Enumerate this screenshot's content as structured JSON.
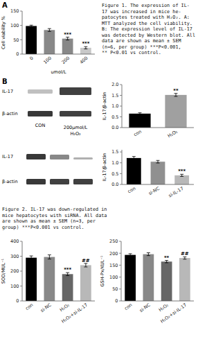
{
  "chart_data": [
    {
      "type": "bar",
      "title": "A",
      "categories": [
        "0",
        "100",
        "200",
        "400"
      ],
      "values": [
        98,
        84,
        54,
        22
      ],
      "errors": [
        3,
        5,
        5,
        4
      ],
      "colors": [
        "#000000",
        "#888888",
        "#888888",
        "#c8c8c8"
      ],
      "ylabel": "Cell viability %",
      "xlabel": "umol/L",
      "ylim": [
        0,
        150
      ],
      "yticks": [
        0,
        50,
        100,
        150
      ],
      "annotations": [
        null,
        null,
        "***",
        "***"
      ]
    },
    {
      "type": "bar",
      "categories": [
        "con",
        "H₂O₂"
      ],
      "values": [
        0.65,
        1.52
      ],
      "errors": [
        0.04,
        0.07
      ],
      "colors": [
        "#000000",
        "#a0a0a0"
      ],
      "ylabel": "IL-17/β-actin",
      "ylim": [
        0.0,
        2.0
      ],
      "yticks": [
        {
          "value": 0,
          "label": "0.0"
        },
        0.5,
        {
          "value": 1,
          "label": "1.0"
        },
        1.5,
        {
          "value": 2,
          "label": "2.0"
        }
      ],
      "annotations": [
        null,
        "**"
      ]
    },
    {
      "type": "bar",
      "categories": [
        "con",
        "si-NC",
        "si-IL-17"
      ],
      "values": [
        1.22,
        1.05,
        0.42
      ],
      "errors": [
        0.07,
        0.06,
        0.05
      ],
      "colors": [
        "#000000",
        "#909090",
        "#b8b8b8"
      ],
      "ylabel": "IL-17/β-actin",
      "ylim": [
        0.0,
        1.6
      ],
      "yticks": [
        {
          "value": 0,
          "label": "0.0"
        },
        0.5,
        {
          "value": 1,
          "label": "1.0"
        },
        1.5
      ],
      "annotations": [
        null,
        null,
        "***"
      ]
    },
    {
      "type": "bar",
      "categories": [
        "con",
        "si-NC",
        "H₂O₂",
        "H₂O₂+si-IL-17"
      ],
      "values": [
        290,
        295,
        180,
        240
      ],
      "errors": [
        12,
        14,
        10,
        12
      ],
      "colors": [
        "#000000",
        "#888888",
        "#666666",
        "#b8b8b8"
      ],
      "ylabel": "SOD/MUL⁻¹",
      "ylim": [
        0,
        400
      ],
      "yticks": [
        0,
        100,
        200,
        300,
        400
      ],
      "annotations": [
        null,
        null,
        "***",
        "##"
      ]
    },
    {
      "type": "bar",
      "categories": [
        "con",
        "si-NC",
        "H₂O₂",
        "H₂O₂+si-IL-17"
      ],
      "values": [
        193,
        196,
        165,
        180
      ],
      "errors": [
        5,
        6,
        5,
        5
      ],
      "colors": [
        "#000000",
        "#888888",
        "#666666",
        "#b8b8b8"
      ],
      "ylabel": "GSH-Px/KUL⁻¹",
      "ylim": [
        0,
        250
      ],
      "yticks": [
        0,
        50,
        100,
        150,
        200,
        250
      ],
      "annotations": [
        null,
        null,
        "**",
        "##"
      ]
    }
  ],
  "western_blots": [
    {
      "panel": "B",
      "row_labels": [
        "IL-17",
        "β-actin"
      ],
      "lane_labels": [
        [
          "CON"
        ],
        [
          "200μmol/L",
          "H₂O₂"
        ]
      ]
    },
    {
      "row_labels": [
        "IL-17",
        "β-actin"
      ]
    }
  ],
  "captions": [
    "Figure 1. The expression of IL-\n17 was increased in mice he-\npatocytes treated with H₂O₂. A:\nMTT analyzed the cell viability.\nB: The expression level of IL-17\nwas detected by Western blot. All\ndata are shown as mean ± SEM\n(n=6, per group)  ***P<0.001,\n** P<0.01 vs control.",
    "Figure 2. IL-17 was down-regulated in\nmice hepatocytes with siRNA. All data\nare shown as mean ± SEM (n=3, per\ngroup) ***P<0.001 vs control."
  ]
}
